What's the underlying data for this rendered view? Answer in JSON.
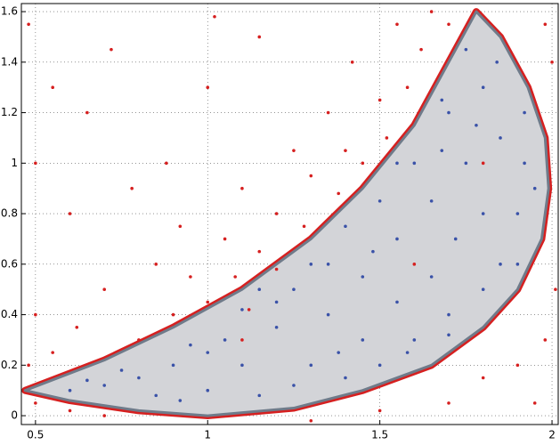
{
  "chart_data": {
    "type": "scatter",
    "xlim": [
      0.459,
      2.018
    ],
    "ylim": [
      -0.035,
      1.632
    ],
    "xticks": [
      0.5,
      1,
      1.5,
      2
    ],
    "yticks": [
      0,
      0.2,
      0.4,
      0.6,
      0.8,
      1,
      1.2,
      1.4,
      1.6
    ],
    "grid": true,
    "region": {
      "color": "#d3d4d8",
      "edge_color": "#6f7b8a",
      "x": [
        0.47,
        0.7,
        0.9,
        1.1,
        1.3,
        1.45,
        1.6,
        1.7,
        1.78,
        1.85,
        1.93,
        1.98,
        1.99,
        1.97,
        1.9,
        1.8,
        1.65,
        1.45,
        1.25,
        1.0,
        0.8,
        0.6
      ],
      "y": [
        0.1,
        0.22,
        0.35,
        0.5,
        0.7,
        0.9,
        1.15,
        1.4,
        1.6,
        1.5,
        1.3,
        1.1,
        0.9,
        0.7,
        0.5,
        0.35,
        0.2,
        0.1,
        0.03,
        0.0,
        0.02,
        0.06
      ]
    },
    "series": [
      {
        "color": "#d62020",
        "x": [
          0.48,
          0.55,
          0.6,
          0.5,
          0.55,
          0.62,
          0.7,
          0.72,
          0.8,
          0.85,
          0.88,
          0.9,
          0.95,
          1.0,
          1.0,
          1.05,
          1.08,
          1.1,
          1.15,
          1.15,
          1.2,
          1.2,
          1.25,
          1.28,
          1.3,
          1.35,
          1.38,
          1.4,
          1.42,
          1.45,
          1.5,
          1.52,
          1.55,
          1.58,
          1.62,
          1.65,
          1.7,
          1.98,
          2.0,
          2.01,
          1.98,
          1.9,
          1.95,
          1.8,
          1.7,
          1.5,
          1.3,
          0.7,
          0.5,
          0.48,
          0.6,
          1.1,
          1.6,
          1.8,
          0.5,
          0.65,
          0.78,
          1.02,
          0.92,
          1.12
        ],
        "y": [
          1.55,
          1.3,
          0.8,
          0.4,
          0.25,
          0.35,
          0.5,
          1.45,
          0.3,
          0.6,
          1.0,
          0.4,
          0.55,
          0.45,
          1.3,
          0.7,
          0.55,
          0.9,
          0.65,
          1.5,
          0.8,
          0.58,
          1.05,
          0.75,
          0.95,
          1.2,
          0.88,
          1.05,
          1.4,
          1.0,
          1.25,
          1.1,
          1.55,
          1.3,
          1.45,
          1.6,
          1.55,
          1.55,
          1.4,
          0.5,
          0.3,
          0.2,
          0.05,
          0.15,
          0.05,
          0.02,
          -0.02,
          0.0,
          0.05,
          0.2,
          0.02,
          0.3,
          0.6,
          1.0,
          1.0,
          1.2,
          0.9,
          1.58,
          0.75,
          0.42
        ]
      },
      {
        "color": "#3a52a8",
        "x": [
          0.6,
          0.7,
          0.75,
          0.85,
          0.9,
          0.95,
          1.0,
          1.05,
          1.1,
          1.1,
          1.15,
          1.2,
          1.25,
          1.3,
          1.3,
          1.35,
          1.4,
          1.4,
          1.45,
          1.45,
          1.5,
          1.5,
          1.55,
          1.55,
          1.6,
          1.6,
          1.65,
          1.65,
          1.7,
          1.7,
          1.72,
          1.75,
          1.75,
          1.8,
          1.8,
          1.8,
          1.85,
          1.85,
          1.84,
          1.9,
          1.92,
          1.92,
          1.95,
          1.68,
          1.55,
          1.35,
          1.2,
          0.8,
          0.65,
          1.0,
          1.25,
          1.58,
          1.7,
          1.9,
          1.48,
          1.38,
          1.68,
          1.78,
          0.92,
          1.15
        ],
        "y": [
          0.1,
          0.12,
          0.18,
          0.08,
          0.2,
          0.28,
          0.1,
          0.3,
          0.2,
          0.42,
          0.08,
          0.35,
          0.5,
          0.2,
          0.6,
          0.4,
          0.15,
          0.75,
          0.3,
          0.55,
          0.2,
          0.85,
          0.45,
          0.7,
          0.3,
          1.0,
          0.55,
          0.85,
          0.4,
          1.2,
          0.7,
          1.0,
          1.45,
          0.5,
          0.8,
          1.3,
          0.6,
          1.1,
          1.4,
          0.8,
          1.0,
          1.2,
          0.9,
          1.25,
          1.0,
          0.6,
          0.45,
          0.15,
          0.14,
          0.25,
          0.12,
          0.25,
          0.32,
          0.6,
          0.65,
          0.25,
          1.05,
          1.15,
          0.06,
          0.5
        ]
      }
    ]
  }
}
